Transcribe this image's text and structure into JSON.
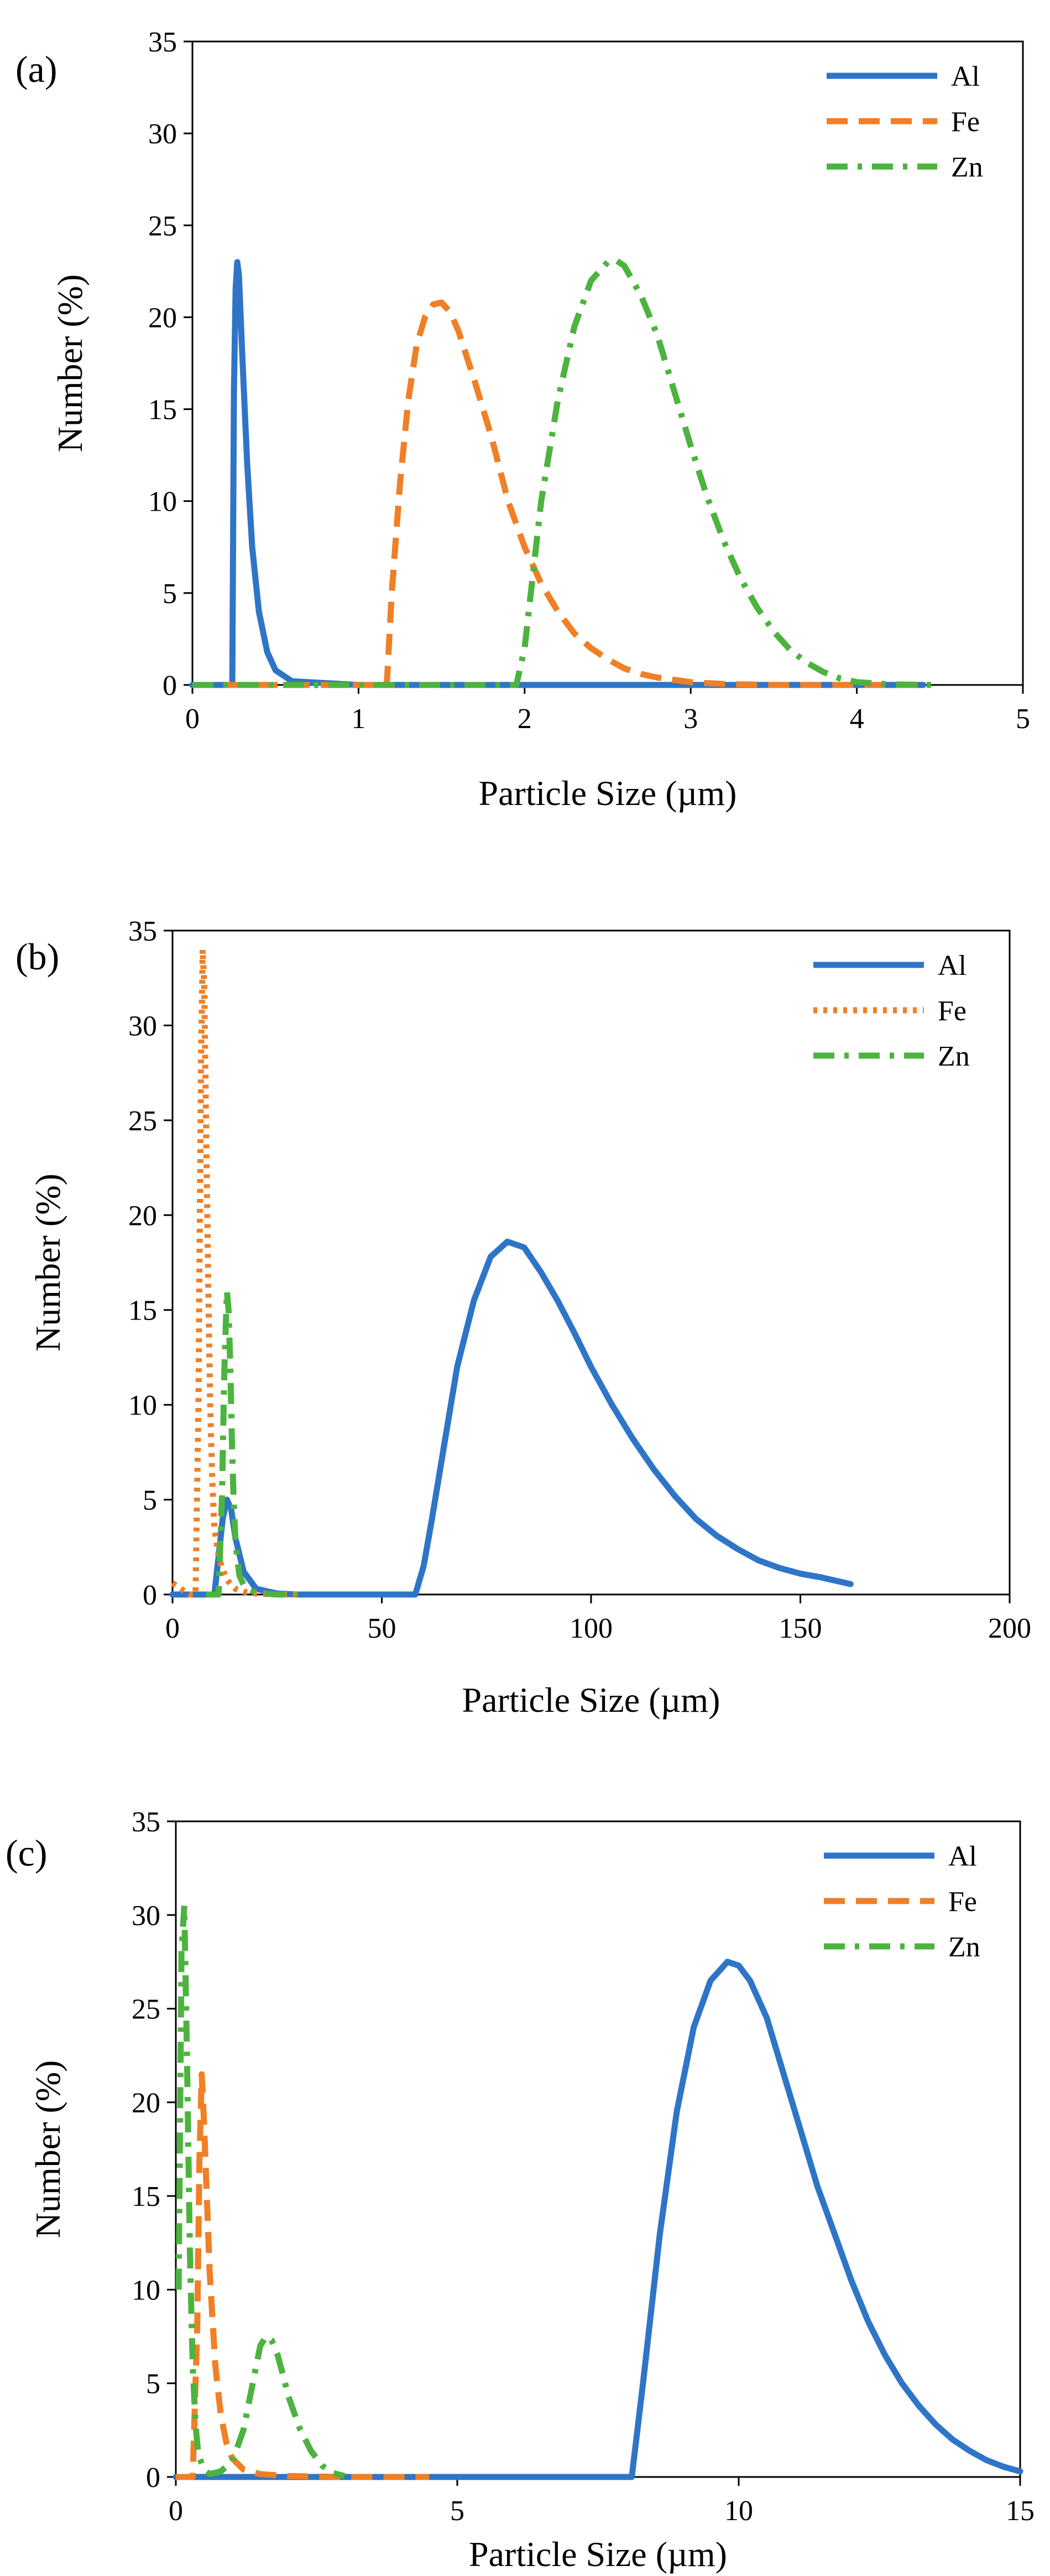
{
  "figure": {
    "panel_labels": [
      "(a)",
      "(b)",
      "(c)"
    ]
  },
  "chart_data": [
    {
      "type": "line",
      "panel": "(a)",
      "title": "",
      "xlabel": "Particle Size (µm)",
      "ylabel": "Number (%)",
      "xlim": [
        0,
        5
      ],
      "ylim": [
        0,
        35
      ],
      "xticks": [
        0,
        1,
        2,
        3,
        4,
        5
      ],
      "yticks": [
        0,
        5,
        10,
        15,
        20,
        25,
        30,
        35
      ],
      "legend_position": "top-right",
      "series": [
        {
          "name": "Al",
          "color": "#2E75C8",
          "style": "solid",
          "x": [
            0.0,
            0.24,
            0.245,
            0.25,
            0.26,
            0.27,
            0.28,
            0.3,
            0.33,
            0.36,
            0.4,
            0.45,
            0.5,
            0.6,
            1.0,
            2.0,
            3.0,
            4.0,
            4.4
          ],
          "y": [
            0.0,
            0.0,
            8.0,
            16.0,
            21.5,
            23.0,
            22.3,
            18.0,
            12.0,
            7.5,
            4.0,
            1.8,
            0.8,
            0.2,
            0.0,
            0.0,
            0.0,
            0.0,
            0.0
          ]
        },
        {
          "name": "Fe",
          "color": "#F07F26",
          "style": "dashed",
          "x": [
            0.0,
            1.0,
            1.17,
            1.2,
            1.25,
            1.3,
            1.35,
            1.4,
            1.45,
            1.5,
            1.55,
            1.6,
            1.7,
            1.8,
            1.9,
            2.0,
            2.1,
            2.2,
            2.3,
            2.4,
            2.5,
            2.6,
            2.7,
            2.8,
            3.0,
            3.2,
            3.5,
            4.0,
            4.4
          ],
          "y": [
            0.0,
            0.0,
            0.0,
            5.0,
            11.0,
            15.5,
            18.5,
            20.0,
            20.7,
            20.8,
            20.3,
            19.3,
            16.5,
            13.5,
            10.0,
            7.5,
            5.5,
            4.0,
            2.8,
            2.0,
            1.4,
            0.9,
            0.6,
            0.4,
            0.15,
            0.05,
            0.0,
            0.0,
            0.0
          ]
        },
        {
          "name": "Zn",
          "color": "#4DB33F",
          "style": "dashdot",
          "x": [
            0.0,
            1.95,
            2.0,
            2.1,
            2.2,
            2.3,
            2.4,
            2.5,
            2.55,
            2.6,
            2.7,
            2.8,
            2.9,
            3.0,
            3.1,
            3.2,
            3.3,
            3.4,
            3.5,
            3.6,
            3.7,
            3.8,
            3.9,
            4.0,
            4.2,
            4.5
          ],
          "y": [
            0.0,
            0.0,
            2.0,
            10.0,
            15.5,
            19.5,
            22.0,
            23.0,
            23.1,
            22.8,
            21.2,
            19.0,
            16.0,
            13.0,
            10.2,
            7.8,
            5.8,
            4.2,
            2.9,
            1.9,
            1.2,
            0.7,
            0.35,
            0.15,
            0.03,
            0.0
          ]
        }
      ]
    },
    {
      "type": "line",
      "panel": "(b)",
      "title": "",
      "xlabel": "Particle Size (µm)",
      "ylabel": "Number (%)",
      "xlim": [
        0,
        200
      ],
      "ylim": [
        0,
        35
      ],
      "xticks": [
        0,
        50,
        100,
        150,
        200
      ],
      "yticks": [
        0,
        5,
        10,
        15,
        20,
        25,
        30,
        35
      ],
      "legend_position": "top-right",
      "series": [
        {
          "name": "Al",
          "color": "#2E75C8",
          "style": "solid",
          "x": [
            0,
            10,
            11,
            12,
            13,
            14,
            15,
            17,
            20,
            25,
            30,
            40,
            50,
            58,
            60,
            62,
            65,
            68,
            72,
            76,
            80,
            84,
            88,
            92,
            96,
            100,
            105,
            110,
            115,
            120,
            125,
            130,
            135,
            140,
            145,
            150,
            155,
            160,
            162
          ],
          "y": [
            0,
            0,
            2.0,
            4.0,
            5.0,
            4.5,
            3.0,
            1.2,
            0.3,
            0.05,
            0.0,
            0.0,
            0.0,
            0.0,
            1.5,
            4.0,
            8.0,
            12.0,
            15.5,
            17.8,
            18.6,
            18.3,
            17.0,
            15.5,
            13.8,
            12.0,
            10.0,
            8.2,
            6.6,
            5.2,
            4.0,
            3.1,
            2.4,
            1.8,
            1.4,
            1.1,
            0.9,
            0.65,
            0.55
          ]
        },
        {
          "name": "Fe",
          "color": "#F07F26",
          "style": "dotted",
          "x": [
            0,
            4,
            5.5,
            6.2,
            6.8,
            7.2,
            7.6,
            8.0,
            8.5,
            9.0,
            9.5,
            10.0,
            11,
            12,
            13,
            14,
            15,
            17,
            20,
            25,
            30
          ],
          "y": [
            0.6,
            0.0,
            0.0,
            10.0,
            28.0,
            34.0,
            32.0,
            25.0,
            17.0,
            10.0,
            6.0,
            3.5,
            2.0,
            1.3,
            0.8,
            0.5,
            0.3,
            0.15,
            0.05,
            0.0,
            0.0
          ]
        },
        {
          "name": "Zn",
          "color": "#4DB33F",
          "style": "dashdot",
          "x": [
            8,
            11,
            11.8,
            12.4,
            13.0,
            13.4,
            13.8,
            14.2,
            14.6,
            15.0,
            15.5,
            16.0,
            17,
            18,
            20,
            22,
            25,
            30
          ],
          "y": [
            0,
            0,
            5.0,
            12.0,
            16.0,
            15.0,
            12.0,
            8.0,
            5.0,
            3.0,
            1.8,
            1.0,
            0.5,
            0.25,
            0.1,
            0.05,
            0.0,
            0.0
          ]
        }
      ]
    },
    {
      "type": "line",
      "panel": "(c)",
      "title": "",
      "xlabel": "Particle Size (µm)",
      "ylabel": "Number (%)",
      "xlim": [
        0,
        15
      ],
      "ylim": [
        0,
        35
      ],
      "xticks": [
        0,
        5,
        10,
        15
      ],
      "yticks": [
        0,
        5,
        10,
        15,
        20,
        25,
        30,
        35
      ],
      "legend_position": "top-right",
      "series": [
        {
          "name": "Al",
          "color": "#2E75C8",
          "style": "solid",
          "x": [
            0,
            7.5,
            8.1,
            8.3,
            8.6,
            8.9,
            9.2,
            9.5,
            9.8,
            10.0,
            10.2,
            10.5,
            10.8,
            11.1,
            11.4,
            11.7,
            12.0,
            12.3,
            12.6,
            12.9,
            13.2,
            13.5,
            13.8,
            14.1,
            14.4,
            14.7,
            15.0
          ],
          "y": [
            0,
            0,
            0,
            5.0,
            13.0,
            19.5,
            24.0,
            26.5,
            27.5,
            27.3,
            26.5,
            24.5,
            21.5,
            18.5,
            15.5,
            13.0,
            10.5,
            8.3,
            6.5,
            5.0,
            3.8,
            2.8,
            2.0,
            1.4,
            0.9,
            0.55,
            0.3
          ]
        },
        {
          "name": "Fe",
          "color": "#F07F26",
          "style": "dashed",
          "x": [
            0,
            0.3,
            0.38,
            0.42,
            0.46,
            0.5,
            0.55,
            0.6,
            0.7,
            0.8,
            0.9,
            1.0,
            1.2,
            1.5,
            2.0,
            3.0,
            4.5
          ],
          "y": [
            0,
            0,
            8.0,
            17.0,
            21.5,
            19.0,
            15.0,
            11.0,
            6.0,
            3.3,
            1.8,
            1.0,
            0.4,
            0.15,
            0.05,
            0.0,
            0.0
          ]
        },
        {
          "name": "Zn",
          "color": "#4DB33F",
          "style": "dashdot",
          "x": [
            0.05,
            0.1,
            0.15,
            0.2,
            0.25,
            0.3,
            0.35,
            0.4,
            0.5,
            0.6,
            0.8,
            1.0,
            1.2,
            1.4,
            1.5,
            1.6,
            1.7,
            1.8,
            1.9,
            2.0,
            2.2,
            2.4,
            2.6,
            2.8,
            3.0
          ],
          "y": [
            10.0,
            28.0,
            30.5,
            22.0,
            12.0,
            6.0,
            2.8,
            1.2,
            0.4,
            0.15,
            0.3,
            0.8,
            2.5,
            5.5,
            7.0,
            7.5,
            7.3,
            6.6,
            5.5,
            4.3,
            2.6,
            1.4,
            0.6,
            0.2,
            0.05
          ]
        }
      ]
    }
  ]
}
